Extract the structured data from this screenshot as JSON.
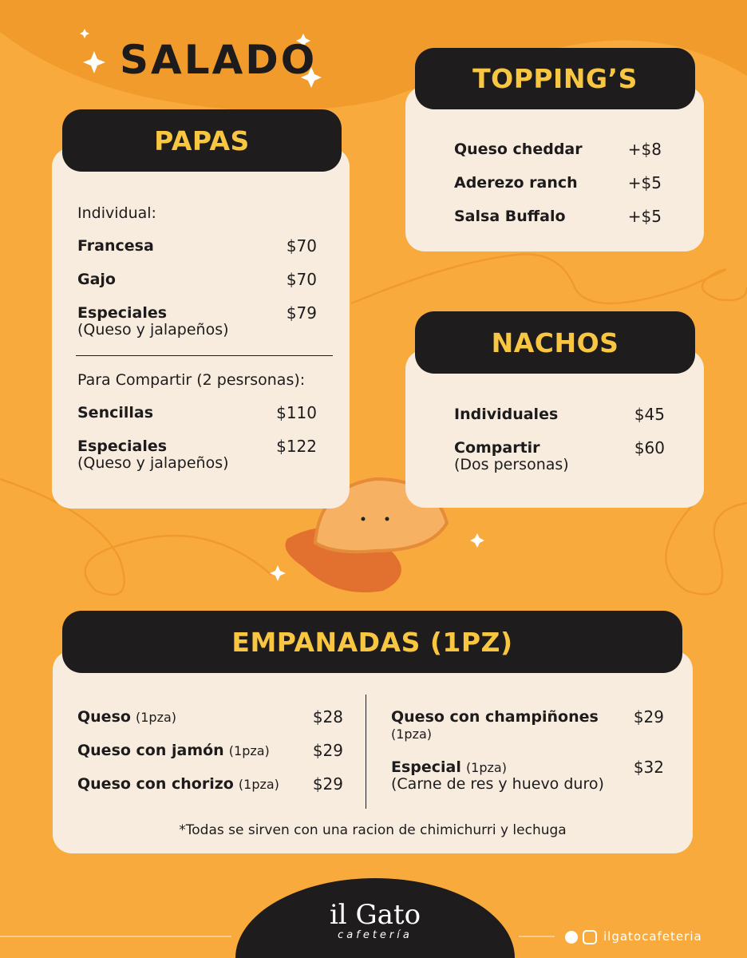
{
  "title": "SALADO",
  "papas": {
    "heading": "PAPAS",
    "groups": [
      {
        "label": "Individual:",
        "items": [
          {
            "name": "Francesa",
            "price": "$70"
          },
          {
            "name": "Gajo",
            "price": "$70"
          },
          {
            "name": "Especiales",
            "note": "(Queso y jalapeños)",
            "price": "$79"
          }
        ]
      },
      {
        "label": "Para Compartir (2 pesrsonas):",
        "items": [
          {
            "name": "Sencillas",
            "price": "$110"
          },
          {
            "name": "Especiales",
            "note": "(Queso y jalapeños)",
            "price": "$122"
          }
        ]
      }
    ]
  },
  "toppings": {
    "heading": "TOPPING’S",
    "items": [
      {
        "name": "Queso cheddar",
        "price": "+$8"
      },
      {
        "name": "Aderezo ranch",
        "price": "+$5"
      },
      {
        "name": "Salsa Buffalo",
        "price": "+$5"
      }
    ]
  },
  "nachos": {
    "heading": "NACHOS",
    "items": [
      {
        "name": "Individuales",
        "price": "$45"
      },
      {
        "name": "Compartir",
        "note": "(Dos personas)",
        "price": "$60"
      }
    ]
  },
  "empanadas": {
    "heading": "EMPANADAS (1PZ)",
    "columns": [
      [
        {
          "name": "Queso",
          "unit": "(1pza)",
          "price": "$28"
        },
        {
          "name": "Queso con jamón",
          "unit": "(1pza)",
          "price": "$29"
        },
        {
          "name": "Queso con chorizo",
          "unit": "(1pza)",
          "price": "$29"
        }
      ],
      [
        {
          "name": "Queso con champiñones",
          "unit": "(1pza)",
          "price": "$29"
        },
        {
          "name": "Especial",
          "unit": "(1pza)",
          "note": "(Carne de res y huevo duro)",
          "price": "$32"
        }
      ]
    ],
    "footnote": "*Todas se sirven con una racion de chimichurri y lechuga"
  },
  "footer": {
    "brand": "il Gato",
    "tagline": "cafetería",
    "social": "ilgatocafeteria"
  }
}
